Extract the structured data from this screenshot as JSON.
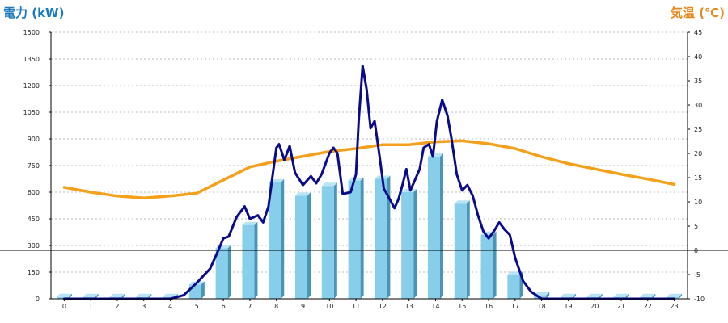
{
  "chart_data": {
    "type": "bar+line",
    "title_left": "電力 (kW)",
    "title_right": "気温 (℃)",
    "categories": [
      "0",
      "1",
      "2",
      "3",
      "4",
      "5",
      "6",
      "7",
      "8",
      "9",
      "10",
      "11",
      "12",
      "13",
      "14",
      "15",
      "16",
      "17",
      "18",
      "19",
      "20",
      "21",
      "22",
      "23"
    ],
    "power_bars": [
      10,
      10,
      10,
      10,
      10,
      80,
      285,
      415,
      655,
      580,
      635,
      665,
      675,
      600,
      800,
      535,
      360,
      135,
      20,
      10,
      10,
      10,
      10,
      10
    ],
    "power_line": {
      "x": [
        0,
        1,
        2,
        3,
        4,
        4.5,
        5,
        5.5,
        5.8,
        6,
        6.2,
        6.5,
        6.8,
        7,
        7.3,
        7.5,
        7.7,
        7.9,
        8,
        8.1,
        8.3,
        8.5,
        8.7,
        9,
        9.3,
        9.5,
        9.7,
        10,
        10.15,
        10.3,
        10.5,
        10.8,
        11,
        11.1,
        11.25,
        11.4,
        11.55,
        11.7,
        11.9,
        12.05,
        12.2,
        12.45,
        12.6,
        12.75,
        12.9,
        13.05,
        13.2,
        13.4,
        13.55,
        13.75,
        13.9,
        14.05,
        14.25,
        14.45,
        14.6,
        14.8,
        15,
        15.2,
        15.4,
        15.6,
        15.8,
        16,
        16.2,
        16.4,
        16.6,
        16.8,
        17,
        17.3,
        17.6,
        17.8,
        18,
        19,
        20,
        21,
        22,
        23
      ],
      "y": [
        0,
        0,
        0,
        0,
        0,
        20,
        90,
        170,
        270,
        340,
        350,
        460,
        520,
        450,
        470,
        430,
        520,
        740,
        850,
        870,
        780,
        860,
        710,
        640,
        690,
        650,
        700,
        820,
        850,
        820,
        590,
        600,
        700,
        1000,
        1310,
        1180,
        960,
        1000,
        790,
        620,
        580,
        510,
        560,
        640,
        730,
        610,
        660,
        730,
        850,
        870,
        800,
        1000,
        1120,
        1030,
        900,
        700,
        610,
        640,
        580,
        470,
        380,
        340,
        380,
        430,
        390,
        360,
        230,
        100,
        40,
        20,
        0,
        0,
        0,
        0,
        0,
        0
      ]
    },
    "temperature": {
      "x": [
        0,
        1,
        2,
        3,
        4,
        5,
        6,
        7,
        8,
        9,
        10,
        11,
        12,
        13,
        14,
        15,
        16,
        17,
        18,
        19,
        20,
        21,
        22,
        23
      ],
      "y": [
        13,
        12,
        11.2,
        10.8,
        11.2,
        11.8,
        14.5,
        17.2,
        18.4,
        19.4,
        20.4,
        21,
        21.8,
        21.8,
        22.4,
        22.6,
        22,
        21,
        19.3,
        17.9,
        16.8,
        15.7,
        14.7,
        13.6
      ]
    },
    "y_left": {
      "min": 0,
      "max": 1500,
      "step": 150
    },
    "y_right": {
      "min": -10,
      "max": 45,
      "step": 5
    },
    "x_ticks": [
      "0",
      "1",
      "2",
      "3",
      "4",
      "5",
      "6",
      "7",
      "8",
      "9",
      "10",
      "11",
      "12",
      "13",
      "14",
      "15",
      "16",
      "17",
      "18",
      "19",
      "20",
      "21",
      "22",
      "23"
    ],
    "y_left_ticks": [
      "0",
      "150",
      "300",
      "450",
      "600",
      "750",
      "900",
      "1050",
      "1200",
      "1350",
      "1500"
    ],
    "y_right_ticks": [
      "-10",
      "-5",
      "0",
      "5",
      "10",
      "15",
      "20",
      "25",
      "30",
      "35",
      "40",
      "45"
    ],
    "grid": "horizontal dashed",
    "colors": {
      "bar_front": "#87ceeb",
      "bar_side": "#4a94b6",
      "bar_top": "#b9e4f5",
      "power_line": "#0a0a8c",
      "temperature_line": "#f5a01a",
      "title_left": "#1a7abf",
      "title_right": "#e8871c",
      "grid": "#bbbbbb",
      "zero_line": "#000000"
    }
  }
}
